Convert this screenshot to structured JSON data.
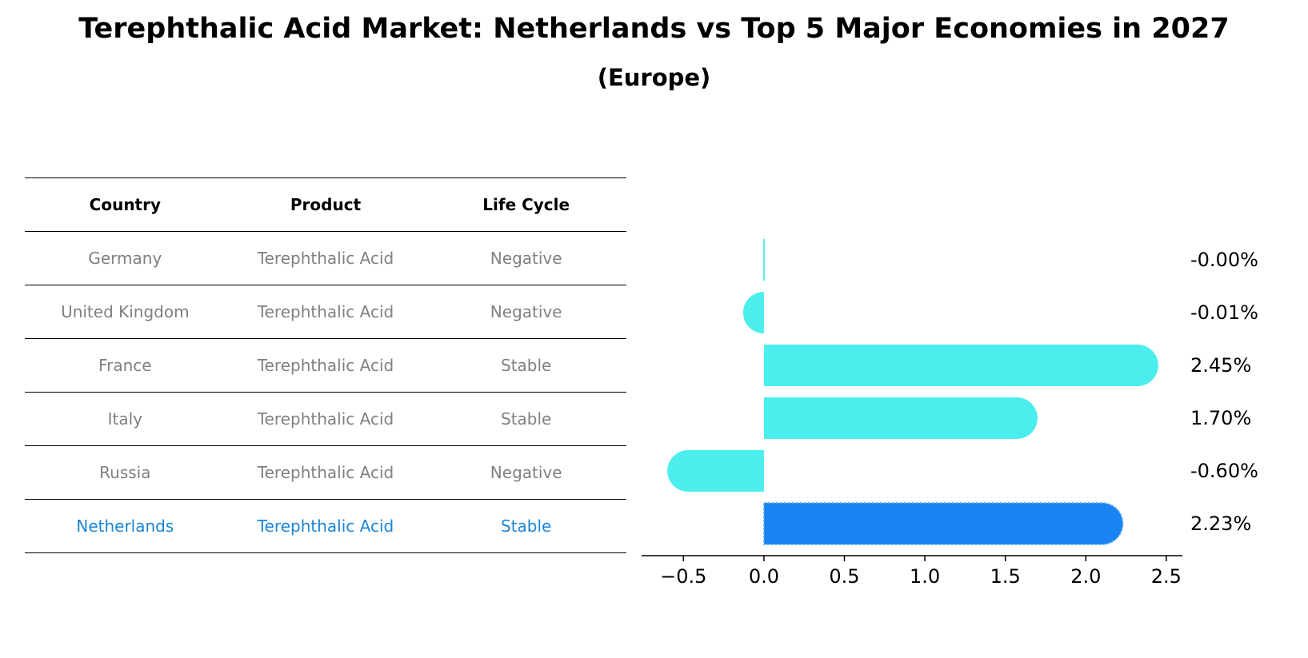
{
  "title": "Terephthalic Acid Market: Netherlands vs Top 5 Major Economies in 2027",
  "subtitle": "(Europe)",
  "table": {
    "headers": [
      "Country",
      "Product",
      "Life Cycle"
    ],
    "rows": [
      {
        "country": "Germany",
        "product": "Terephthalic Acid",
        "life_cycle": "Negative"
      },
      {
        "country": "United Kingdom",
        "product": "Terephthalic Acid",
        "life_cycle": "Negative"
      },
      {
        "country": "France",
        "product": "Terephthalic Acid",
        "life_cycle": "Stable"
      },
      {
        "country": "Italy",
        "product": "Terephthalic Acid",
        "life_cycle": "Stable"
      },
      {
        "country": "Russia",
        "product": "Terephthalic Acid",
        "life_cycle": "Negative"
      },
      {
        "country": "Netherlands",
        "product": "Terephthalic Acid",
        "life_cycle": "Stable"
      }
    ]
  },
  "chart_data": {
    "type": "bar",
    "orientation": "horizontal",
    "categories": [
      "Germany",
      "United Kingdom",
      "France",
      "Italy",
      "Russia",
      "Netherlands"
    ],
    "values": [
      -0.001,
      -0.01,
      2.45,
      1.7,
      -0.6,
      2.23
    ],
    "value_labels": [
      "-0.00%",
      "-0.01%",
      "2.45%",
      "1.70%",
      "-0.60%",
      "2.23%"
    ],
    "xlim": [
      -0.76,
      2.6
    ],
    "xticks": [
      -0.5,
      0.0,
      0.5,
      1.0,
      1.5,
      2.0,
      2.5
    ],
    "xtick_labels": [
      "−0.5",
      "0.0",
      "0.5",
      "1.0",
      "1.5",
      "2.0",
      "2.5"
    ],
    "grid": false,
    "colors": {
      "default": "#4beeed",
      "highlight": "#1a85f2",
      "highlight_text": "#1a85d6",
      "muted_text": "#808080"
    },
    "highlight_category": "Netherlands"
  }
}
